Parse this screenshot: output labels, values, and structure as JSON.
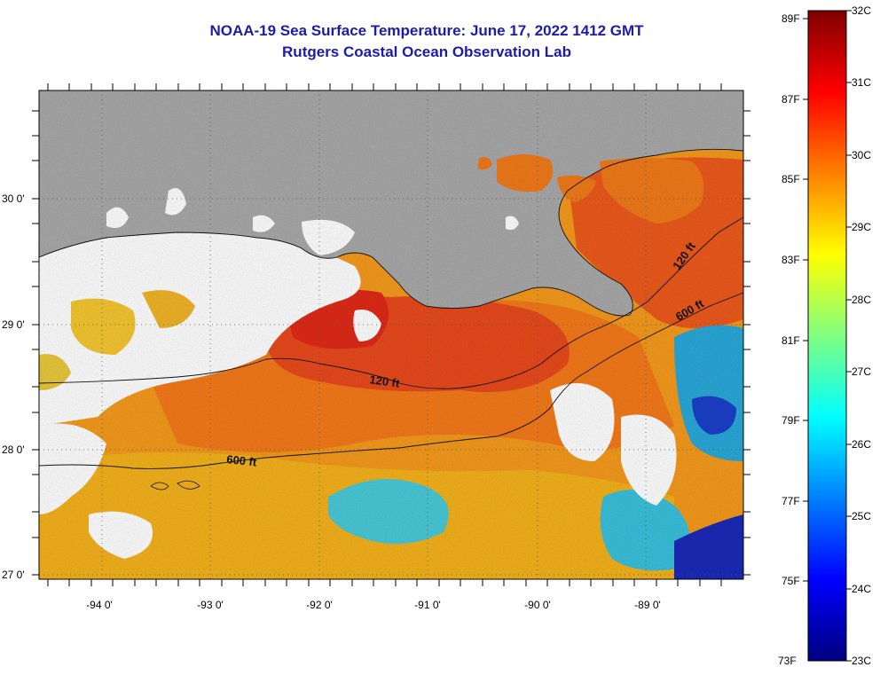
{
  "title": {
    "line1": "NOAA-19 Sea Surface Temperature:  June 17, 2022 1412 GMT",
    "line2": "Rutgers Coastal Ocean Observation Lab"
  },
  "axes": {
    "longitude_labels": [
      "-94 0'",
      "-93 0'",
      "-92 0'",
      "-91 0'",
      "-90 0'",
      "-89 0'"
    ],
    "latitude_labels": [
      "30 0'",
      "29 0'",
      "28 0'",
      "27 0'"
    ]
  },
  "contours": {
    "label_120_west": "120 ft",
    "label_120_east": "120 ft",
    "label_600_west": "600 ft",
    "label_600_east": "600 ft"
  },
  "colorbar": {
    "fahrenheit_labels": [
      "89F",
      "87F",
      "85F",
      "83F",
      "81F",
      "79F",
      "77F",
      "75F",
      "73F"
    ],
    "celsius_labels": [
      "32C",
      "31C",
      "30C",
      "29C",
      "28C",
      "27C",
      "26C",
      "25C",
      "24C",
      "23C"
    ],
    "min_c": 23,
    "max_c": 32,
    "stops": [
      "#00007f",
      "#0000ff",
      "#0080ff",
      "#00ffff",
      "#80ff80",
      "#ffff00",
      "#ff8000",
      "#ff0000",
      "#7f0000"
    ]
  },
  "colors": {
    "land": "#a9a9a9",
    "cloud": "#ffffff",
    "title": "#1c1ca8",
    "warm": "#f47a1a",
    "hot": "#e83a1c",
    "yellow": "#f4b21c",
    "cool": "#37c6e0",
    "cold": "#1030c0"
  }
}
